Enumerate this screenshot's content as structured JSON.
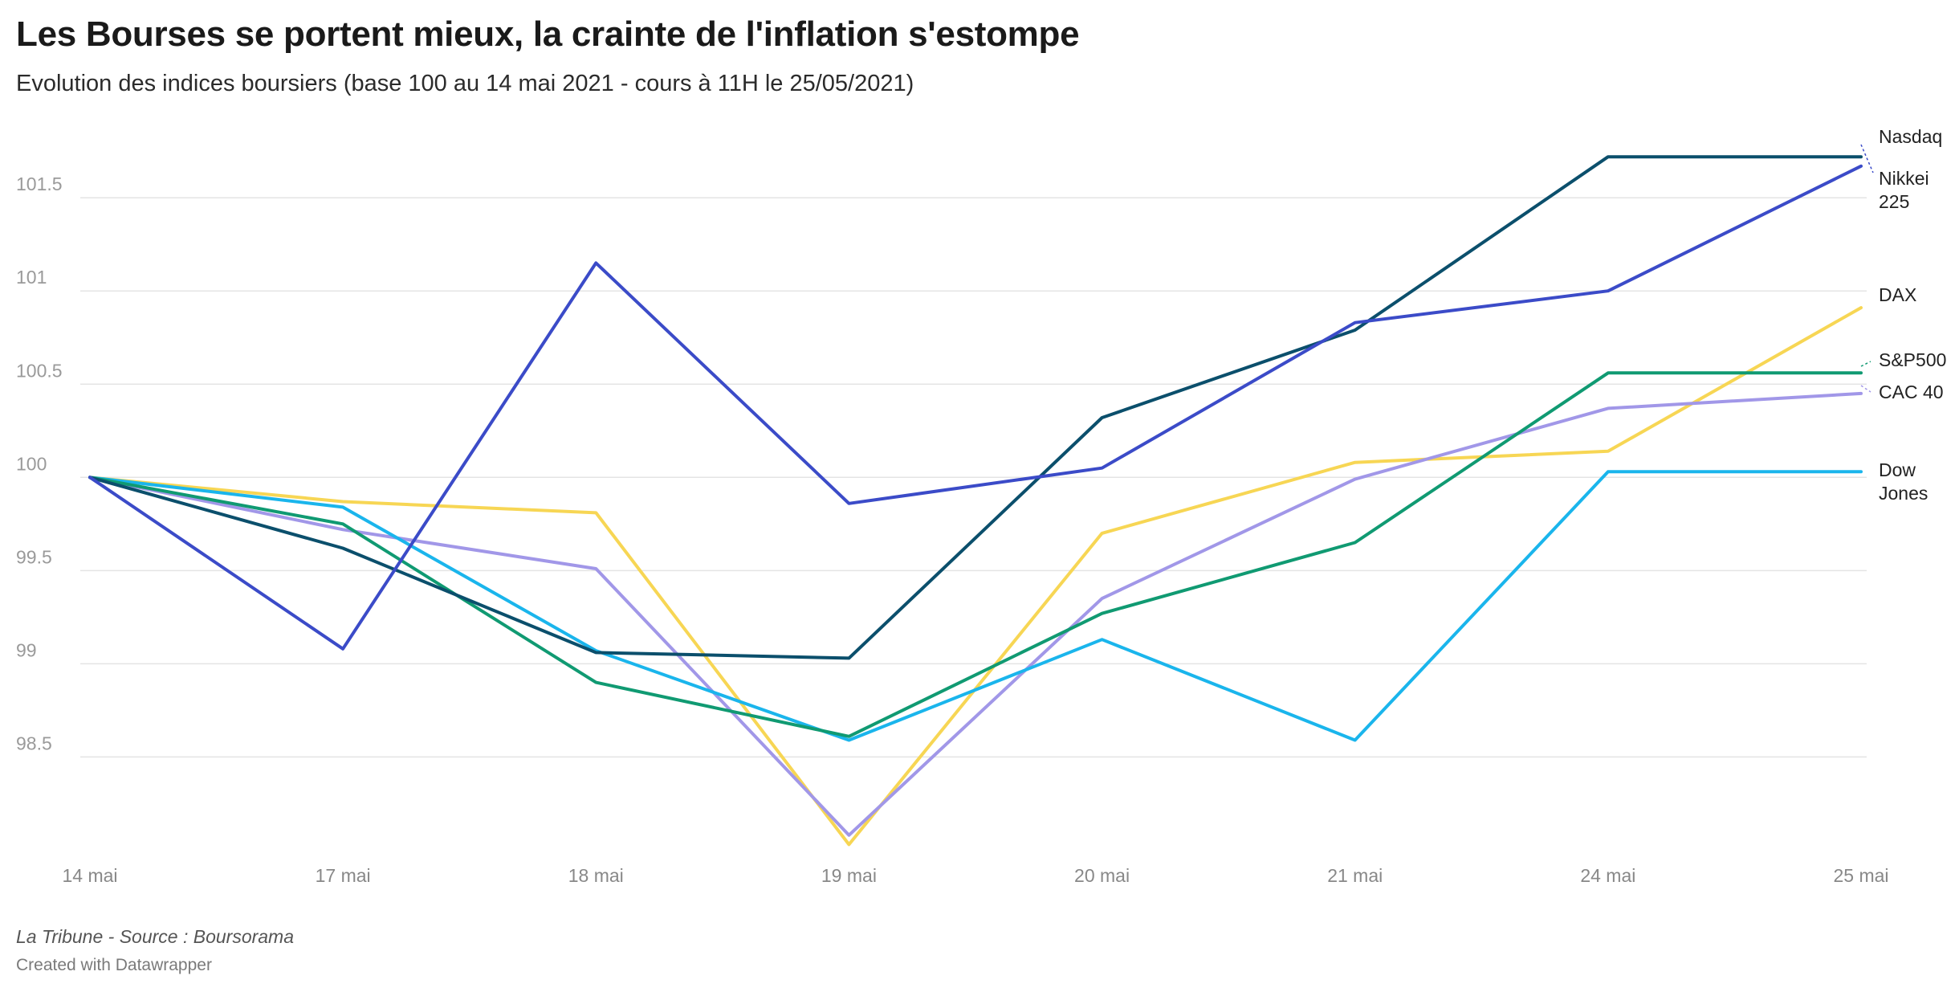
{
  "header": {
    "title": "Les Bourses se portent mieux, la crainte de l'inflation s'estompe",
    "subtitle": "Evolution des indices boursiers (base 100 au 14 mai 2021 - cours à 11H le 25/05/2021)"
  },
  "footer": {
    "credit": "La Tribune - Source : Boursorama",
    "made_with": "Created with Datawrapper"
  },
  "chart_data": {
    "type": "line",
    "x": [
      "14 mai",
      "17 mai",
      "18 mai",
      "19 mai",
      "20 mai",
      "21 mai",
      "24 mai",
      "25 mai"
    ],
    "y_ticks": [
      98.5,
      99,
      99.5,
      100,
      100.5,
      101,
      101.5
    ],
    "y_tick_labels": [
      "98.5",
      "99",
      "99.5",
      "100",
      "100.5",
      "101",
      "101.5"
    ],
    "ylim": [
      97.95,
      101.85
    ],
    "grid": true,
    "legend": "direct-labels-right",
    "series": [
      {
        "name": "Nasdaq",
        "label_lines": [
          "Nasdaq"
        ],
        "color": "#0b4f6c",
        "values": [
          100,
          99.62,
          99.06,
          99.03,
          100.32,
          100.79,
          101.72,
          101.72
        ]
      },
      {
        "name": "Nikkei 225",
        "label_lines": [
          "Nikkei",
          "225"
        ],
        "color": "#3b4bc8",
        "values": [
          100,
          99.08,
          101.15,
          99.86,
          100.05,
          100.83,
          101.0,
          101.67
        ]
      },
      {
        "name": "DAX",
        "label_lines": [
          "DAX"
        ],
        "color": "#f7d654",
        "values": [
          100,
          99.87,
          99.81,
          98.03,
          99.7,
          100.08,
          100.14,
          100.91
        ]
      },
      {
        "name": "S&P500",
        "label_lines": [
          "S&P500"
        ],
        "color": "#109a72",
        "values": [
          100,
          99.75,
          98.9,
          98.61,
          99.27,
          99.65,
          100.56,
          100.56
        ]
      },
      {
        "name": "CAC 40",
        "label_lines": [
          "CAC 40"
        ],
        "color": "#a197e8",
        "values": [
          100,
          99.72,
          99.51,
          98.08,
          99.35,
          99.99,
          100.37,
          100.45
        ]
      },
      {
        "name": "Dow Jones",
        "label_lines": [
          "Dow",
          "Jones"
        ],
        "color": "#1ab5ec",
        "values": [
          100,
          99.84,
          99.07,
          98.59,
          99.13,
          98.59,
          100.03,
          100.03
        ]
      }
    ]
  }
}
